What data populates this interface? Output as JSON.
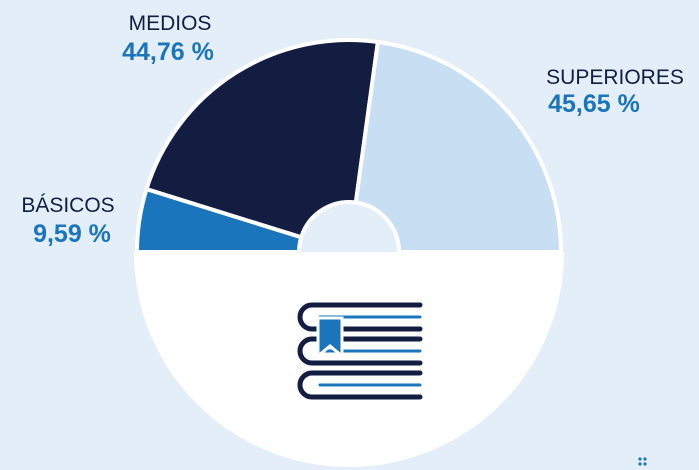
{
  "chart_data": {
    "type": "donut",
    "categories": [
      "BÁSICOS",
      "MEDIOS",
      "SUPERIORES"
    ],
    "values": [
      9.59,
      44.76,
      45.65
    ],
    "value_labels": [
      "9,59 %",
      "44,76 %",
      "45,65 %"
    ],
    "colors": [
      "#1a75bc",
      "#131d42",
      "#c8def2"
    ]
  }
}
